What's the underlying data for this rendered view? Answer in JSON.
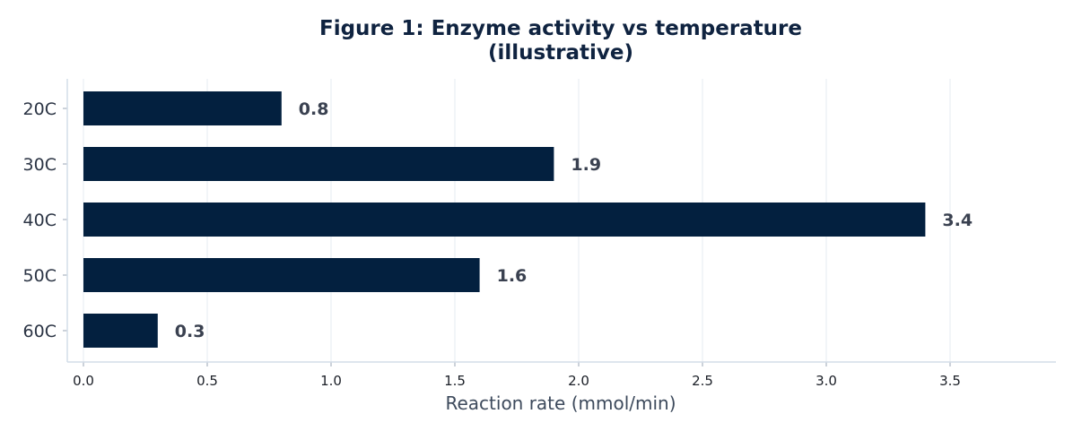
{
  "chart_data": {
    "type": "bar",
    "orientation": "horizontal",
    "title": "Figure 1: Enzyme activity vs temperature",
    "subtitle": "(illustrative)",
    "xlabel": "Reaction rate (mmol/min)",
    "ylabel": "",
    "categories": [
      "20C",
      "30C",
      "40C",
      "50C",
      "60C"
    ],
    "values": [
      0.8,
      1.9,
      3.4,
      1.6,
      0.3
    ],
    "value_labels": [
      "0.8",
      "1.9",
      "3.4",
      "1.6",
      "0.3"
    ],
    "xlim": [
      0,
      3.9
    ],
    "xticks": [
      0.0,
      0.5,
      1.0,
      1.5,
      2.0,
      2.5,
      3.0,
      3.5
    ],
    "xtick_labels": [
      "0.0",
      "0.5",
      "1.0",
      "1.5",
      "2.0",
      "2.5",
      "3.0",
      "3.5"
    ],
    "grid": "vertical",
    "bar_color": "#03203f",
    "legend": "none"
  }
}
